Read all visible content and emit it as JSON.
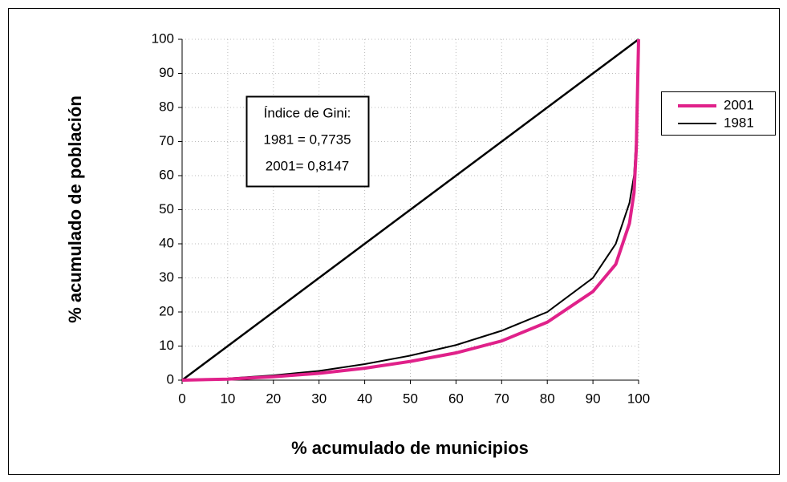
{
  "chart_data": {
    "type": "line",
    "xlabel": "% acumulado de municipios",
    "ylabel": "% acumulado de población",
    "x": [
      0,
      10,
      20,
      30,
      40,
      50,
      60,
      70,
      80,
      90,
      95,
      98,
      99,
      99.5,
      100
    ],
    "series": [
      {
        "name": "2001",
        "color": "#e0218a",
        "values": [
          0,
          0.3,
          1,
          2,
          3.5,
          5.5,
          8,
          11.5,
          17,
          26,
          34,
          46,
          55,
          68,
          100
        ]
      },
      {
        "name": "1981",
        "color": "#000000",
        "values": [
          0,
          0.5,
          1.4,
          2.7,
          4.7,
          7.2,
          10.3,
          14.5,
          20,
          30,
          40,
          52,
          60,
          72,
          100
        ]
      }
    ],
    "diagonal": {
      "x": [
        0,
        100
      ],
      "values": [
        0,
        100
      ],
      "color": "#000000"
    },
    "annotation": [
      "Índice de Gini:",
      "1981 = 0,7735",
      "2001= 0,8147"
    ],
    "xlim": [
      0,
      100
    ],
    "ylim": [
      0,
      100
    ],
    "xticks": [
      0,
      10,
      20,
      30,
      40,
      50,
      60,
      70,
      80,
      90,
      100
    ],
    "yticks": [
      0,
      10,
      20,
      30,
      40,
      50,
      60,
      70,
      80,
      90,
      100
    ],
    "grid": true,
    "legend": "right"
  }
}
